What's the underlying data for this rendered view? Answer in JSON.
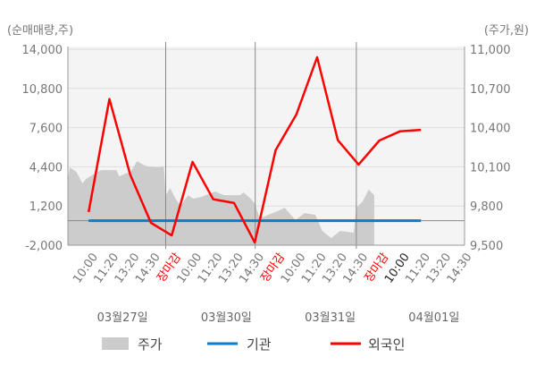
{
  "chart_data": {
    "type": "line",
    "left_unit_label": "(순매매량,주)",
    "right_unit_label": "(주가,원)",
    "left_ticks": [
      "14,000",
      "10,800",
      "7,600",
      "4,400",
      "1,200",
      "-2,000"
    ],
    "right_ticks": [
      "11,000",
      "10,700",
      "10,400",
      "10,100",
      "9,800",
      "9,500"
    ],
    "ylim_left": [
      -2000,
      14000
    ],
    "ylim_right": [
      9500,
      11000
    ],
    "xlim": [
      -1,
      18.1
    ],
    "x_labels": [
      {
        "text": "10:00",
        "close": false
      },
      {
        "text": "11:20",
        "close": false
      },
      {
        "text": "13:20",
        "close": false
      },
      {
        "text": "14:30",
        "close": false
      },
      {
        "text": "장마감",
        "close": true
      },
      {
        "text": "10:00",
        "close": false
      },
      {
        "text": "11:20",
        "close": false
      },
      {
        "text": "13:20",
        "close": false
      },
      {
        "text": "14:30",
        "close": false
      },
      {
        "text": "장마감",
        "close": true
      },
      {
        "text": "10:00",
        "close": false
      },
      {
        "text": "11:20",
        "close": false
      },
      {
        "text": "13:20",
        "close": false
      },
      {
        "text": "14:30",
        "close": false
      },
      {
        "text": "장마감",
        "close": true
      },
      {
        "text": "10:00",
        "close": false,
        "current": true
      },
      {
        "text": "11:20",
        "close": false
      },
      {
        "text": "13:20",
        "close": false
      },
      {
        "text": "14:30",
        "close": false
      }
    ],
    "dates": [
      "03월27일",
      "03월30일",
      "03월31일",
      "04월01일"
    ],
    "day_separators": [
      3.71,
      8.02,
      12.89
    ],
    "series": [
      {
        "name": "주가",
        "axis": "right",
        "type": "area",
        "color": "#cccccc",
        "points": [
          [
            -0.99,
            10014
          ],
          [
            -0.91,
            10096
          ],
          [
            -0.6,
            10062
          ],
          [
            -0.3,
            9973
          ],
          [
            -0.13,
            10007
          ],
          [
            0.22,
            10041
          ],
          [
            0.6,
            10075
          ],
          [
            1.34,
            10075
          ],
          [
            1.47,
            10027
          ],
          [
            1.77,
            10048
          ],
          [
            2.03,
            10062
          ],
          [
            2.33,
            10144
          ],
          [
            2.63,
            10116
          ],
          [
            2.84,
            10103
          ],
          [
            3.32,
            10096
          ],
          [
            3.62,
            10103
          ],
          [
            3.71,
            9883
          ],
          [
            3.92,
            9938
          ],
          [
            4.18,
            9856
          ],
          [
            4.44,
            9801
          ],
          [
            4.78,
            9883
          ],
          [
            5.04,
            9856
          ],
          [
            5.43,
            9870
          ],
          [
            6.08,
            9911
          ],
          [
            6.51,
            9883
          ],
          [
            7.28,
            9883
          ],
          [
            7.46,
            9904
          ],
          [
            7.8,
            9856
          ],
          [
            8.02,
            9815
          ],
          [
            8.23,
            9705
          ],
          [
            8.66,
            9733
          ],
          [
            9.09,
            9760
          ],
          [
            9.44,
            9787
          ],
          [
            9.96,
            9692
          ],
          [
            10.39,
            9746
          ],
          [
            10.91,
            9733
          ],
          [
            11.25,
            9609
          ],
          [
            11.68,
            9555
          ],
          [
            12.11,
            9609
          ],
          [
            12.76,
            9596
          ],
          [
            12.89,
            9787
          ],
          [
            13.19,
            9835
          ],
          [
            13.49,
            9925
          ],
          [
            13.75,
            9883
          ]
        ]
      },
      {
        "name": "기관",
        "axis": "left",
        "type": "line",
        "color": "#0a7dc8",
        "points": [
          [
            0,
            0
          ],
          [
            16,
            0
          ]
        ]
      },
      {
        "name": "외국인",
        "axis": "left",
        "type": "line",
        "color": "#ff0000",
        "points": [
          [
            0,
            700
          ],
          [
            1,
            9930
          ],
          [
            2,
            3770
          ],
          [
            3,
            -170
          ],
          [
            4,
            -1200
          ],
          [
            5,
            4800
          ],
          [
            6,
            1750
          ],
          [
            7,
            1450
          ],
          [
            8,
            -1780
          ],
          [
            9,
            5750
          ],
          [
            10,
            8670
          ],
          [
            11,
            13340
          ],
          [
            12,
            6570
          ],
          [
            13,
            4580
          ],
          [
            14,
            6550
          ],
          [
            15,
            7300
          ],
          [
            16,
            7420
          ]
        ]
      }
    ],
    "legend": [
      "주가",
      "기관",
      "외국인"
    ],
    "legend_position": "bottom",
    "grid": true
  }
}
